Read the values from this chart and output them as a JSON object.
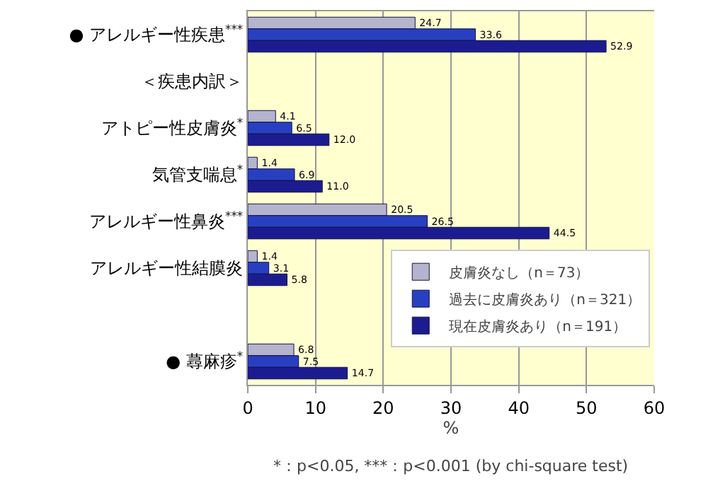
{
  "chart_data": {
    "type": "bar",
    "orientation": "horizontal",
    "categories": [
      "● アレルギー性疾患$^{***}$",
      "＜疾患内訳＞",
      "アトピー性皮膚炎$^{*}$",
      "気管支喘息$^{*}$",
      "アレルギー性鼻炎$^{***}$",
      "アレルギー性結膜炎",
      null,
      "● 蕁麻疹$^{*}$"
    ],
    "series": [
      {
        "name": "皮膚炎なし（n＝73）",
        "color": "#b4b4cc",
        "values": [
          24.7,
          null,
          4.1,
          1.4,
          20.5,
          1.4,
          null,
          6.8
        ],
        "value_labels": [
          "24.7",
          null,
          "4.1",
          "1.4",
          "20.5",
          "1.4",
          null,
          "6.8"
        ]
      },
      {
        "name": "過去に皮膚炎あり（n＝321）",
        "color": "#2840c0",
        "values": [
          33.6,
          null,
          6.5,
          6.9,
          26.5,
          3.1,
          null,
          7.5
        ],
        "value_labels": [
          "33.6",
          null,
          "6.5",
          "6.9",
          "26.5",
          "3.1",
          null,
          "7.5"
        ]
      },
      {
        "name": "現在皮膚炎あり（n＝191）",
        "color": "#1c1c90",
        "values": [
          52.9,
          null,
          12.0,
          11.0,
          44.5,
          5.8,
          null,
          14.7
        ],
        "value_labels": [
          "52.9",
          null,
          "12.0",
          "11.0",
          "44.5",
          "5.8",
          null,
          "14.7"
        ]
      }
    ],
    "xlim": [
      0,
      60
    ],
    "xticks": [
      0,
      10,
      20,
      30,
      40,
      50,
      60
    ],
    "xlabel": "%",
    "grid": "x",
    "legend": "bottom right",
    "annotations": [
      "*：p<0.05, ***：p<0.001 (by chi-square test)"
    ]
  }
}
